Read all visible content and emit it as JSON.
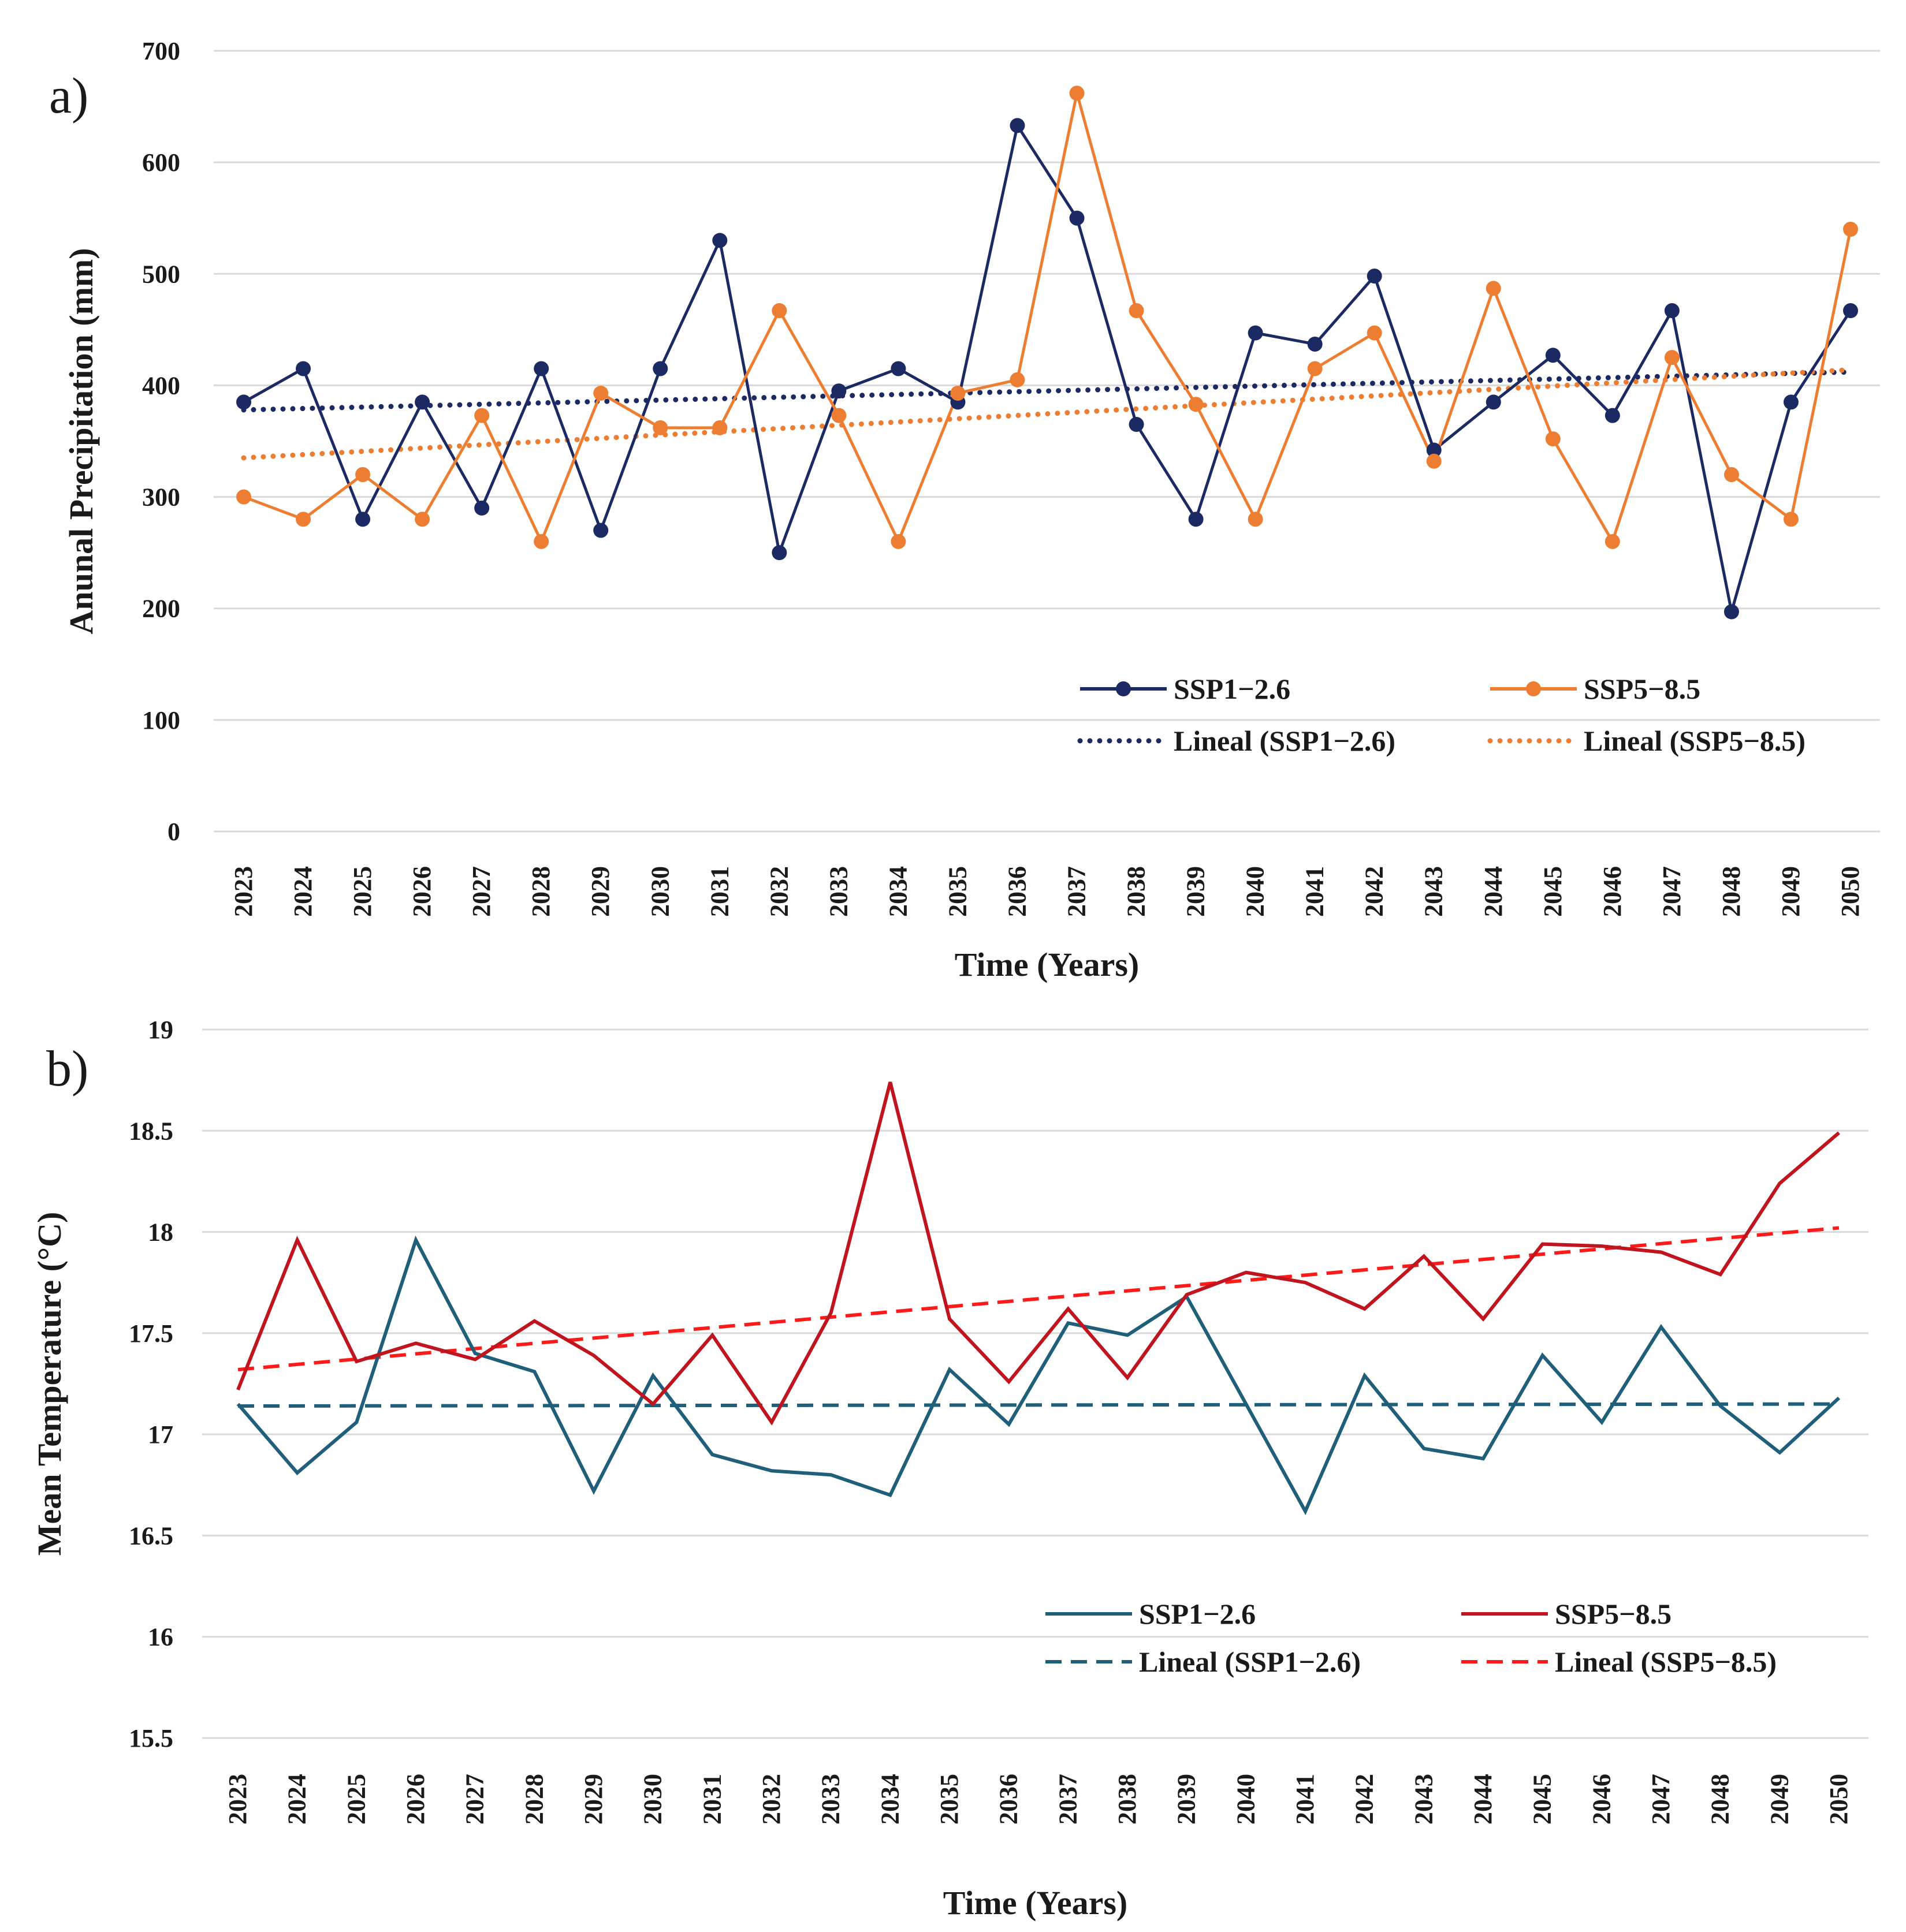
{
  "chart_data": [
    {
      "type": "line",
      "panel_label": "a)",
      "xlabel": "Time (Years)",
      "ylabel": "Anunal Precipitation (mm)",
      "ylim": [
        0,
        700
      ],
      "yticks": [
        "0",
        "100",
        "200",
        "300",
        "400",
        "500",
        "600",
        "700"
      ],
      "categories": [
        "2023",
        "2024",
        "2025",
        "2026",
        "2027",
        "2028",
        "2029",
        "2030",
        "2031",
        "2032",
        "2033",
        "2034",
        "2035",
        "2036",
        "2037",
        "2038",
        "2039",
        "2040",
        "2041",
        "2042",
        "2043",
        "2044",
        "2045",
        "2046",
        "2047",
        "2048",
        "2049",
        "2050"
      ],
      "grid": true,
      "legend_position": "bottom-right",
      "series": [
        {
          "name": "SSP1−2.6",
          "color": "#1b2a63",
          "marker": "circle",
          "style": "solid",
          "values": [
            385,
            415,
            280,
            385,
            290,
            415,
            270,
            415,
            530,
            250,
            395,
            415,
            385,
            633,
            550,
            365,
            280,
            447,
            437,
            498,
            342,
            385,
            427,
            373,
            467,
            197,
            385,
            467
          ]
        },
        {
          "name": "SSP5−8.5",
          "color": "#ed7d31",
          "marker": "circle",
          "style": "solid",
          "values": [
            300,
            280,
            320,
            280,
            373,
            260,
            393,
            362,
            362,
            467,
            373,
            260,
            393,
            405,
            662,
            467,
            383,
            280,
            415,
            447,
            332,
            487,
            352,
            260,
            425,
            320,
            280,
            540
          ]
        }
      ],
      "trendlines": [
        {
          "name": "Lineal (SSP1−2.6)",
          "color": "#1b2a63",
          "style": "dotted",
          "start": 378,
          "end": 412
        },
        {
          "name": "Lineal (SSP5−8.5)",
          "color": "#ed7d31",
          "style": "dotted",
          "start": 335,
          "end": 414
        }
      ]
    },
    {
      "type": "line",
      "panel_label": "b)",
      "xlabel": "Time (Years)",
      "ylabel": "Mean Temperature (°C)",
      "ylim": [
        15.5,
        19
      ],
      "yticks": [
        "15.5",
        "16",
        "16.5",
        "17",
        "17.5",
        "18",
        "18.5",
        "19"
      ],
      "categories": [
        "2023",
        "2024",
        "2025",
        "2026",
        "2027",
        "2028",
        "2029",
        "2030",
        "2031",
        "2032",
        "2033",
        "2034",
        "2035",
        "2036",
        "2037",
        "2038",
        "2039",
        "2040",
        "2041",
        "2042",
        "2043",
        "2044",
        "2045",
        "2046",
        "2047",
        "2048",
        "2049",
        "2050"
      ],
      "grid": true,
      "legend_position": "bottom-right",
      "series": [
        {
          "name": "SSP1−2.6",
          "color": "#1f5f7a",
          "marker": "none",
          "style": "solid",
          "values": [
            17.15,
            16.81,
            17.06,
            17.96,
            17.4,
            17.31,
            16.72,
            17.29,
            16.9,
            16.82,
            16.8,
            16.7,
            17.32,
            17.05,
            17.55,
            17.49,
            17.68,
            17.15,
            16.62,
            17.29,
            16.93,
            16.88,
            17.39,
            17.06,
            17.53,
            17.14,
            16.91,
            17.18
          ]
        },
        {
          "name": "SSP5−8.5",
          "color": "#c0141e",
          "marker": "none",
          "style": "solid",
          "values": [
            17.22,
            17.96,
            17.36,
            17.45,
            17.37,
            17.56,
            17.39,
            17.15,
            17.49,
            17.06,
            17.6,
            18.74,
            17.57,
            17.26,
            17.62,
            17.28,
            17.69,
            17.8,
            17.75,
            17.62,
            17.88,
            17.57,
            17.94,
            17.93,
            17.9,
            17.79,
            18.24,
            18.49
          ]
        }
      ],
      "trendlines": [
        {
          "name": "Lineal (SSP1−2.6)",
          "color": "#1f5f7a",
          "style": "dashed",
          "start": 17.14,
          "end": 17.15
        },
        {
          "name": "Lineal (SSP5−8.5)",
          "color": "#ff1a1a",
          "style": "dashed",
          "start": 17.32,
          "end": 18.02
        }
      ]
    }
  ]
}
